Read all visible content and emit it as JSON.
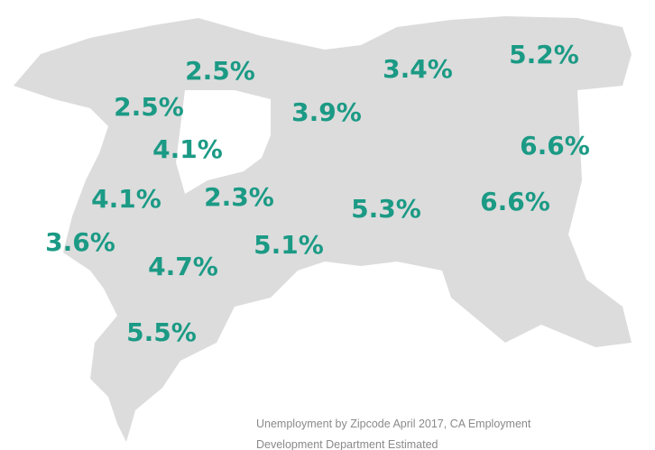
{
  "map": {
    "labels": [
      "2.5%",
      "3.4%",
      "5.2%",
      "2.5%",
      "3.9%",
      "4.1%",
      "6.6%",
      "4.1%",
      "2.3%",
      "5.3%",
      "6.6%",
      "3.6%",
      "5.1%",
      "4.7%",
      "5.5%"
    ],
    "caption": [
      "Unemployment by Zipcode April 2017, CA Employment",
      "Development Department Estimated"
    ]
  }
}
